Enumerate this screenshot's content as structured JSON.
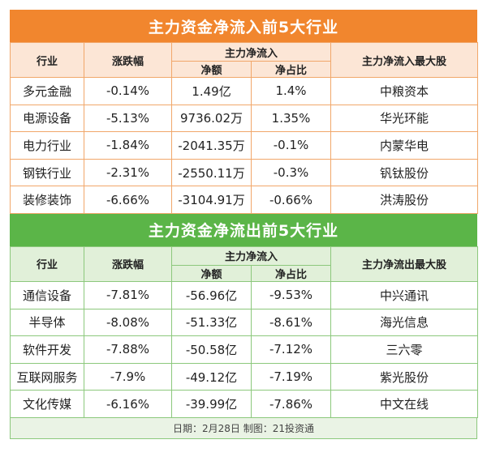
{
  "inflow": {
    "title": "主力资金净流入前5大行业",
    "headers": {
      "industry": "行业",
      "change": "涨跌幅",
      "net_group": "主力净流入",
      "net_amount": "净额",
      "net_ratio": "净占比",
      "top_stock": "主力净流入最大股"
    },
    "rows": [
      {
        "industry": "多元金融",
        "change": "-0.14%",
        "amount": "1.49亿",
        "ratio": "1.4%",
        "stock": "中粮资本"
      },
      {
        "industry": "电源设备",
        "change": "-5.13%",
        "amount": "9736.02万",
        "ratio": "1.35%",
        "stock": "华光环能"
      },
      {
        "industry": "电力行业",
        "change": "-1.84%",
        "amount": "-2041.35万",
        "ratio": "-0.1%",
        "stock": "内蒙华电"
      },
      {
        "industry": "钢铁行业",
        "change": "-2.31%",
        "amount": "-2550.11万",
        "ratio": "-0.3%",
        "stock": "钒钛股份"
      },
      {
        "industry": "装修装饰",
        "change": "-6.66%",
        "amount": "-3104.91万",
        "ratio": "-0.66%",
        "stock": "洪涛股份"
      }
    ]
  },
  "outflow": {
    "title": "主力资金净流出前5大行业",
    "headers": {
      "industry": "行业",
      "change": "涨跌幅",
      "net_group": "主力净流入",
      "net_amount": "净额",
      "net_ratio": "净占比",
      "top_stock": "主力净流出最大股"
    },
    "rows": [
      {
        "industry": "通信设备",
        "change": "-7.81%",
        "amount": "-56.96亿",
        "ratio": "-9.53%",
        "stock": "中兴通讯"
      },
      {
        "industry": "半导体",
        "change": "-8.08%",
        "amount": "-51.33亿",
        "ratio": "-8.61%",
        "stock": "海光信息"
      },
      {
        "industry": "软件开发",
        "change": "-7.88%",
        "amount": "-50.58亿",
        "ratio": "-7.12%",
        "stock": "三六零"
      },
      {
        "industry": "互联网服务",
        "change": "-7.9%",
        "amount": "-49.12亿",
        "ratio": "-7.19%",
        "stock": "紫光股份"
      },
      {
        "industry": "文化传媒",
        "change": "-6.16%",
        "amount": "-39.99亿",
        "ratio": "-7.86%",
        "stock": "中文在线"
      }
    ]
  },
  "footer": "日期：2月28日 制图：21投资通",
  "colors": {
    "inflow_banner": "#f1862e",
    "inflow_header_bg": "#fce6d6",
    "outflow_banner": "#5bb548",
    "outflow_header_bg": "#e1f0d9"
  }
}
